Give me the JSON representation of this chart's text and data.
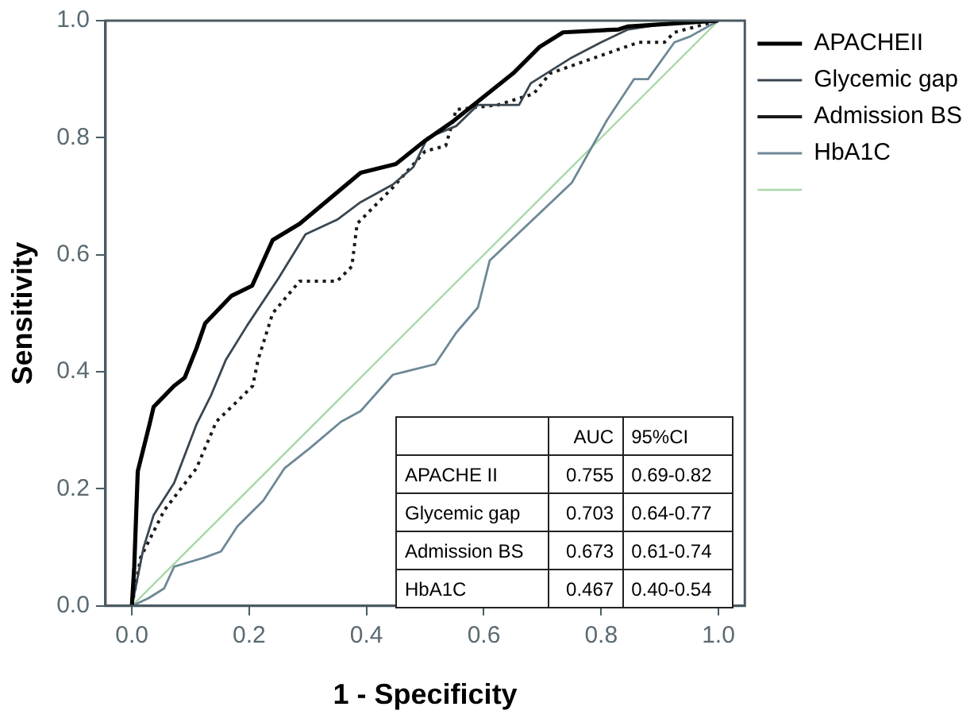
{
  "chart_data": {
    "type": "line",
    "xlabel": "1 - Specificity",
    "ylabel": "Sensitivity",
    "legend": "right",
    "xlim": [
      -0.045,
      1.045
    ],
    "ylim": [
      0,
      1
    ],
    "xticks": [
      {
        "value": 0,
        "label": "0.0"
      },
      {
        "value": 0.2,
        "label": "0.2"
      },
      {
        "value": 0.4,
        "label": "0.4"
      },
      {
        "value": 0.6,
        "label": "0.6"
      },
      {
        "value": 0.8,
        "label": "0.8"
      },
      {
        "value": 1,
        "label": "1.0"
      }
    ],
    "yticks": [
      {
        "value": 0,
        "label": "0.0"
      },
      {
        "value": 0.2,
        "label": "0.2"
      },
      {
        "value": 0.4,
        "label": "0.4"
      },
      {
        "value": 0.6,
        "label": "0.6"
      },
      {
        "value": 0.8,
        "label": "0.8"
      },
      {
        "value": 1,
        "label": "1.0"
      }
    ],
    "series": [
      {
        "name": "APACHEII",
        "color": "#000000",
        "line_style": "solid",
        "x": [
          0,
          0.004,
          0.01,
          0.03,
          0.037,
          0.072,
          0.09,
          0.11,
          0.125,
          0.17,
          0.205,
          0.24,
          0.286,
          0.39,
          0.45,
          0.5,
          0.545,
          0.6,
          0.65,
          0.695,
          0.735,
          0.83,
          0.845,
          1
        ],
        "values": [
          0,
          0.067,
          0.23,
          0.31,
          0.34,
          0.376,
          0.39,
          0.44,
          0.483,
          0.53,
          0.547,
          0.625,
          0.653,
          0.74,
          0.755,
          0.795,
          0.826,
          0.87,
          0.91,
          0.955,
          0.98,
          0.985,
          0.99,
          1
        ]
      },
      {
        "name": "Glycemic gap",
        "color": "#3a4650",
        "line_style": "solid",
        "x": [
          0,
          0.02,
          0.037,
          0.072,
          0.11,
          0.135,
          0.16,
          0.197,
          0.25,
          0.296,
          0.35,
          0.39,
          0.445,
          0.48,
          0.504,
          0.553,
          0.59,
          0.66,
          0.68,
          0.75,
          0.8,
          0.846,
          0.944,
          1
        ],
        "values": [
          0,
          0.1,
          0.155,
          0.21,
          0.31,
          0.36,
          0.42,
          0.48,
          0.56,
          0.635,
          0.66,
          0.69,
          0.72,
          0.75,
          0.8,
          0.82,
          0.856,
          0.856,
          0.893,
          0.937,
          0.963,
          0.985,
          1,
          1
        ]
      },
      {
        "name": "Admission BS",
        "color": "#1a1a1a",
        "line_style": "dotted",
        "x": [
          0,
          0.015,
          0.055,
          0.11,
          0.144,
          0.18,
          0.206,
          0.215,
          0.24,
          0.286,
          0.35,
          0.375,
          0.384,
          0.445,
          0.5,
          0.535,
          0.553,
          0.624,
          0.685,
          0.713,
          0.79,
          0.864,
          0.908,
          0.925,
          1
        ],
        "values": [
          0,
          0.083,
          0.163,
          0.235,
          0.315,
          0.35,
          0.376,
          0.42,
          0.5,
          0.555,
          0.555,
          0.58,
          0.653,
          0.715,
          0.777,
          0.786,
          0.848,
          0.856,
          0.875,
          0.91,
          0.937,
          0.963,
          0.963,
          0.98,
          1
        ]
      },
      {
        "name": "HbA1C",
        "color": "#6d8896",
        "line_style": "solid",
        "x": [
          0,
          0.028,
          0.055,
          0.072,
          0.125,
          0.152,
          0.18,
          0.224,
          0.26,
          0.304,
          0.357,
          0.39,
          0.445,
          0.517,
          0.553,
          0.59,
          0.61,
          0.75,
          0.81,
          0.856,
          0.88,
          0.925,
          0.952,
          1
        ],
        "values": [
          0,
          0.013,
          0.03,
          0.067,
          0.083,
          0.093,
          0.136,
          0.18,
          0.235,
          0.27,
          0.315,
          0.333,
          0.395,
          0.413,
          0.467,
          0.51,
          0.59,
          0.723,
          0.83,
          0.9,
          0.9,
          0.963,
          0.973,
          1
        ]
      },
      {
        "color": "#a8d8a8",
        "line_style": "solid",
        "x": [
          0,
          1
        ],
        "values": [
          0,
          1
        ]
      }
    ],
    "annotations": [
      "AUC",
      "95%CI",
      "APACHE II",
      "0.755",
      "0.69-0.82",
      "Glycemic gap",
      "0.703",
      "0.64-0.77",
      "Admission BS",
      "0.673",
      "0.61-0.74",
      "HbA1C",
      "0.467",
      "0.40-0.54"
    ]
  }
}
